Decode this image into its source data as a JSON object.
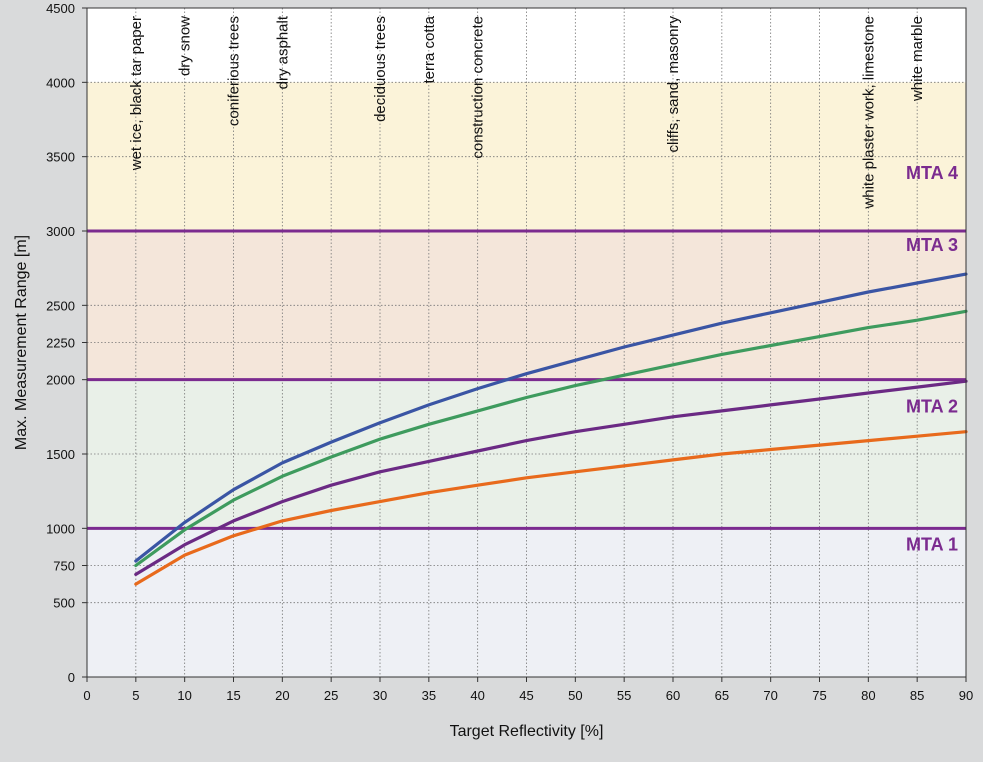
{
  "chart_data": {
    "type": "line",
    "title": "",
    "xlabel": "Target Reflectivity [%]",
    "ylabel": "Max. Measurement Range [m]",
    "xlim": [
      0,
      90
    ],
    "ylim": [
      0,
      4500
    ],
    "x_ticks": [
      0,
      5,
      10,
      15,
      20,
      25,
      30,
      35,
      40,
      45,
      50,
      55,
      60,
      65,
      70,
      75,
      80,
      85,
      90
    ],
    "y_ticks": [
      0,
      500,
      750,
      1000,
      1500,
      2000,
      2250,
      2500,
      3000,
      3500,
      4000,
      4500
    ],
    "grid": true,
    "colors": {
      "zone_mta1": "#eef0f5",
      "zone_mta2": "#e9f0e8",
      "zone_mta3": "#f4e6da",
      "zone_mta4": "#fbf3d9",
      "zone_top": "#ffffff",
      "mta_line": "#7b2b8f",
      "grid": "#777777"
    },
    "mta_zones": [
      {
        "label": "MTA 1",
        "from": 0,
        "to": 1000
      },
      {
        "label": "MTA 2",
        "from": 1000,
        "to": 2000
      },
      {
        "label": "MTA 3",
        "from": 2000,
        "to": 3000
      },
      {
        "label": "MTA 4",
        "from": 3000,
        "to": 4000
      }
    ],
    "mta_boundaries": [
      1000,
      2000,
      3000
    ],
    "surfaces": [
      {
        "label": "wet  ice,  black tar paper",
        "x": 5
      },
      {
        "label": "dry snow",
        "x": 10
      },
      {
        "label": "coniferious trees",
        "x": 15
      },
      {
        "label": "dry asphalt",
        "x": 20
      },
      {
        "label": "deciduous trees",
        "x": 30
      },
      {
        "label": "terra cotta",
        "x": 35
      },
      {
        "label": "construction concrete",
        "x": 40
      },
      {
        "label": "cliffs,  sand,  masonry",
        "x": 60
      },
      {
        "label": "white plaster work,  limestone",
        "x": 80
      },
      {
        "label": "white marble",
        "x": 85
      }
    ],
    "x": [
      5,
      10,
      15,
      20,
      25,
      30,
      35,
      40,
      45,
      50,
      55,
      60,
      65,
      70,
      75,
      80,
      85,
      90
    ],
    "series": [
      {
        "color": "#3a55a4",
        "values": [
          780,
          1040,
          1260,
          1440,
          1580,
          1710,
          1830,
          1940,
          2040,
          2130,
          2220,
          2300,
          2380,
          2450,
          2520,
          2590,
          2650,
          2710
        ]
      },
      {
        "color": "#3e9b5e",
        "values": [
          750,
          990,
          1190,
          1350,
          1480,
          1600,
          1700,
          1790,
          1880,
          1960,
          2030,
          2100,
          2170,
          2230,
          2290,
          2350,
          2400,
          2460
        ]
      },
      {
        "color": "#6b2a84",
        "values": [
          690,
          890,
          1050,
          1180,
          1290,
          1380,
          1450,
          1520,
          1590,
          1650,
          1700,
          1750,
          1790,
          1830,
          1870,
          1910,
          1950,
          1990
        ]
      },
      {
        "color": "#e86a1c",
        "values": [
          625,
          820,
          950,
          1050,
          1120,
          1180,
          1240,
          1290,
          1340,
          1380,
          1420,
          1460,
          1500,
          1530,
          1560,
          1590,
          1620,
          1650
        ]
      }
    ]
  }
}
